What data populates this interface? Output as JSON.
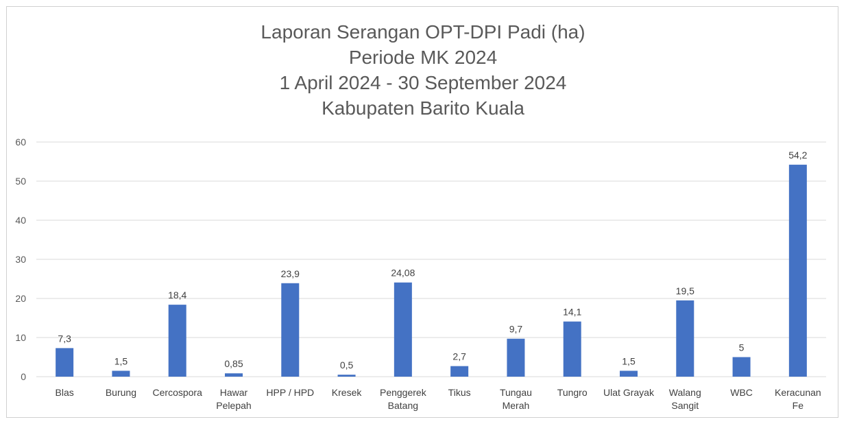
{
  "chart_data": {
    "type": "bar",
    "title_lines": [
      "Laporan Serangan OPT-DPI Padi (ha)",
      "Periode MK 2024",
      "1 April 2024 - 30 September 2024",
      "Kabupaten Barito Kuala"
    ],
    "categories": [
      [
        "Blas"
      ],
      [
        "Burung"
      ],
      [
        "Cercospora"
      ],
      [
        "Hawar",
        "Pelepah"
      ],
      [
        "HPP / HPD"
      ],
      [
        "Kresek"
      ],
      [
        "Penggerek",
        "Batang"
      ],
      [
        "Tikus"
      ],
      [
        "Tungau",
        "Merah"
      ],
      [
        "Tungro"
      ],
      [
        "Ulat Grayak"
      ],
      [
        "Walang",
        "Sangit"
      ],
      [
        "WBC"
      ],
      [
        "Keracunan",
        "Fe"
      ]
    ],
    "values": [
      7.3,
      1.5,
      18.4,
      0.85,
      23.9,
      0.5,
      24.08,
      2.7,
      9.7,
      14.1,
      1.5,
      19.5,
      5,
      54.2
    ],
    "data_labels": [
      "7,3",
      "1,5",
      "18,4",
      "0,85",
      "23,9",
      "0,5",
      "24,08",
      "2,7",
      "9,7",
      "14,1",
      "1,5",
      "19,5",
      "5",
      "54,2"
    ],
    "ylim": [
      0,
      60
    ],
    "yticks": [
      0,
      10,
      20,
      30,
      40,
      50,
      60
    ],
    "grid": true,
    "legend": "none",
    "bar_color": "#4472C4",
    "grid_color": "#d9d9d9"
  }
}
